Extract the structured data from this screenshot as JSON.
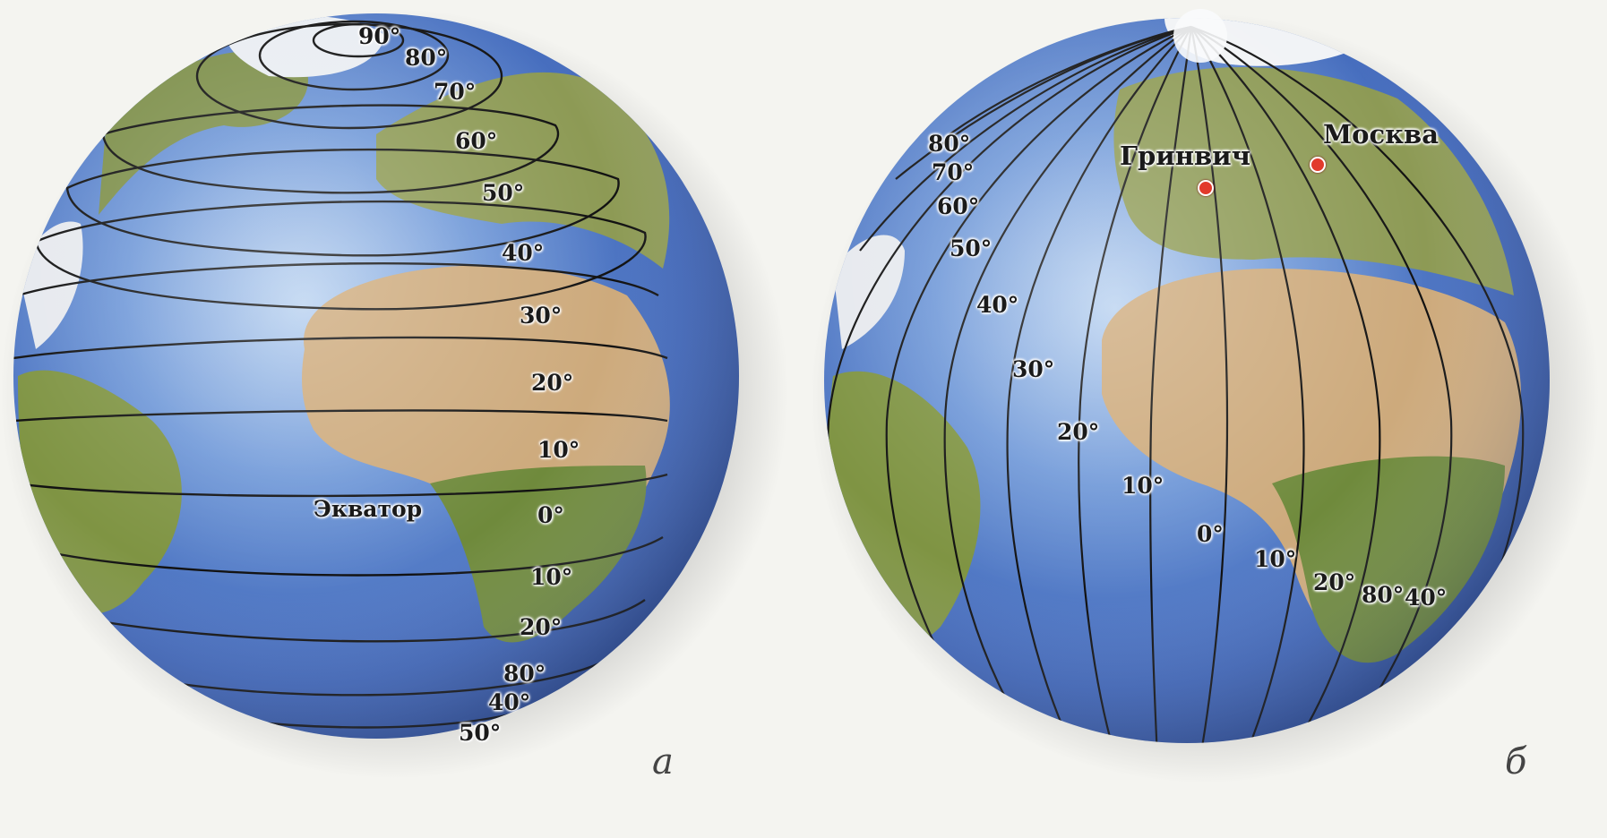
{
  "globe_a": {
    "letter": "а",
    "equator_label": "Экватор",
    "latitudes": [
      "90°",
      "80°",
      "70°",
      "60°",
      "50°",
      "40°",
      "30°",
      "20°",
      "10°",
      "0°",
      "10°",
      "20°",
      "80°",
      "40°",
      "50°"
    ]
  },
  "globe_b": {
    "letter": "б",
    "greenwich_label": "Гринвич",
    "moscow_label": "Москва",
    "longitudes_left": [
      "80°",
      "70°",
      "60°",
      "50°",
      "40°",
      "30°",
      "20°",
      "10°"
    ],
    "longitude_zero": "0°",
    "longitudes_right": [
      "10°",
      "20°",
      "80°",
      "40°"
    ]
  },
  "colors": {
    "ocean": "#3f6fc4",
    "ocean_light": "#8fb4e6",
    "land_green": "#6e8a3a",
    "land_desert": "#c9a67a",
    "ice": "#f4f6f8",
    "grid_line": "#101010",
    "city_dot": "#e23a2c"
  }
}
